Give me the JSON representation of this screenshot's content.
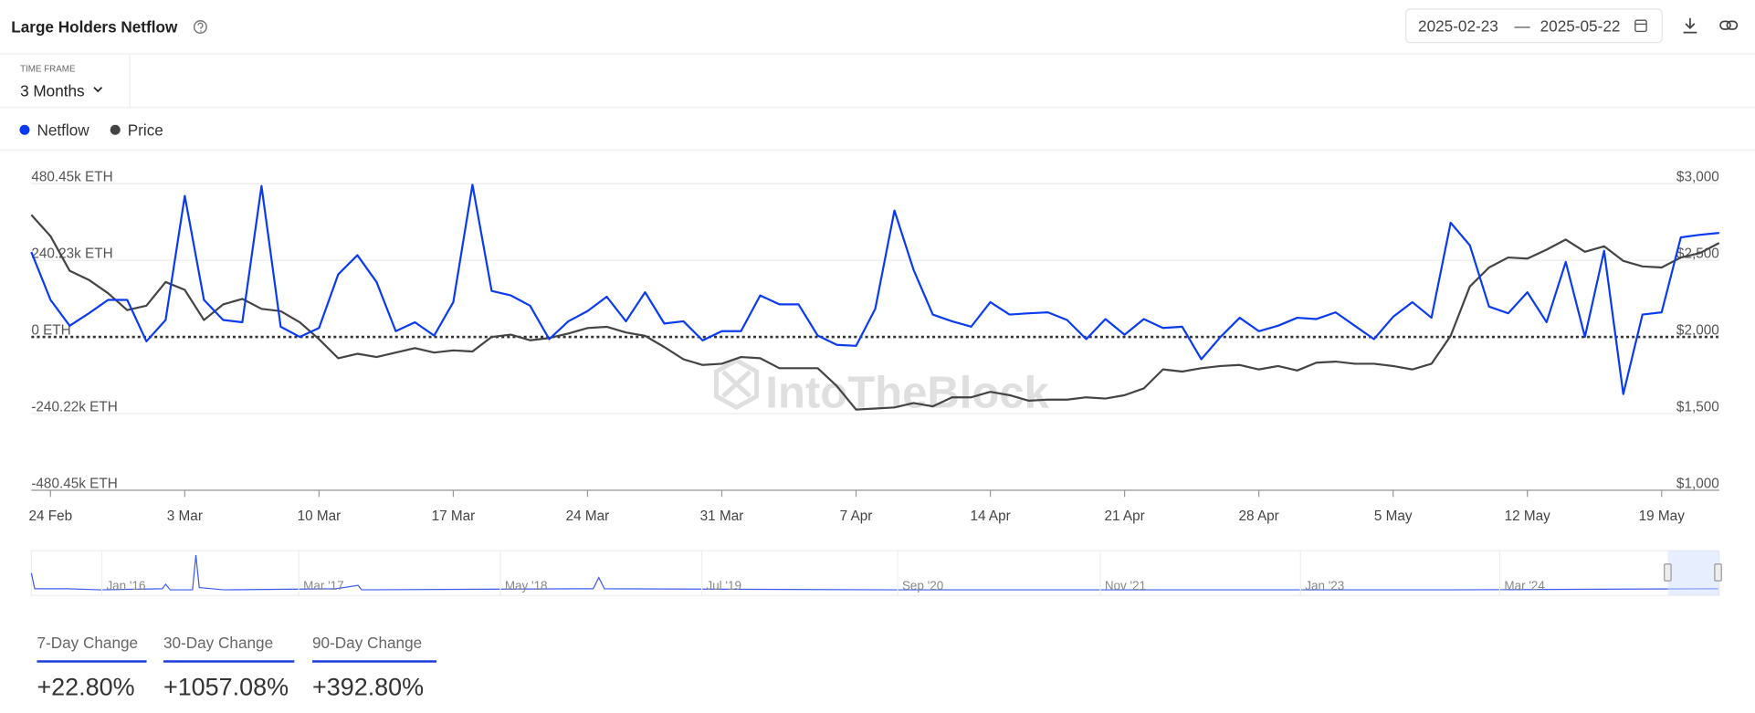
{
  "header": {
    "title": "Large Holders Netflow",
    "date_start": "2025-02-23",
    "date_sep": "—",
    "date_end": "2025-05-22"
  },
  "time_frame": {
    "label": "TIME FRAME",
    "value": "3 Months"
  },
  "chart_data": {
    "type": "line",
    "categories": [
      null,
      "24 Feb",
      null,
      null,
      null,
      null,
      null,
      null,
      "3 Mar",
      null,
      null,
      null,
      null,
      null,
      null,
      "10 Mar",
      null,
      null,
      null,
      null,
      null,
      null,
      "17 Mar",
      null,
      null,
      null,
      null,
      null,
      null,
      "24 Mar",
      null,
      null,
      null,
      null,
      null,
      null,
      "31 Mar",
      null,
      null,
      null,
      null,
      null,
      null,
      "7 Apr",
      null,
      null,
      null,
      null,
      null,
      null,
      "14 Apr",
      null,
      null,
      null,
      null,
      null,
      null,
      "21 Apr",
      null,
      null,
      null,
      null,
      null,
      null,
      "28 Apr",
      null,
      null,
      null,
      null,
      null,
      null,
      "5 May",
      null,
      null,
      null,
      null,
      null,
      null,
      "12 May",
      null,
      null,
      null,
      null,
      null,
      null,
      "19 May",
      null,
      null,
      null
    ],
    "series": [
      {
        "name": "Netflow",
        "color": "#0b3bf0",
        "axis": "y",
        "values": [
          266,
          116,
          35,
          74,
          116,
          116,
          -14,
          53,
          442,
          116,
          53,
          46,
          473,
          32,
          0,
          28,
          196,
          256,
          172,
          18,
          46,
          4,
          109,
          477,
          144,
          130,
          98,
          -7,
          49,
          81,
          126,
          49,
          140,
          42,
          49,
          -11,
          18,
          18,
          130,
          102,
          102,
          4,
          -25,
          -28,
          88,
          396,
          210,
          70,
          49,
          32,
          109,
          70,
          74,
          77,
          53,
          -7,
          56,
          7,
          56,
          28,
          32,
          -70,
          0,
          60,
          18,
          35,
          60,
          56,
          77,
          35,
          -7,
          63,
          109,
          60,
          358,
          287,
          95,
          74,
          140,
          46,
          235,
          0,
          270,
          -179,
          70,
          77,
          312,
          320,
          326
        ]
      },
      {
        "name": "Price",
        "color": "#444444",
        "axis": "y2",
        "values": [
          2796,
          2657,
          2431,
          2372,
          2285,
          2175,
          2204,
          2358,
          2307,
          2110,
          2212,
          2248,
          2183,
          2168,
          2095,
          1985,
          1861,
          1890,
          1869,
          1898,
          1927,
          1898,
          1912,
          1905,
          2000,
          2015,
          1978,
          1993,
          2022,
          2058,
          2066,
          2029,
          2007,
          1934,
          1854,
          1817,
          1825,
          1869,
          1861,
          1796,
          1796,
          1796,
          1679,
          1526,
          1533,
          1540,
          1569,
          1547,
          1606,
          1606,
          1642,
          1620,
          1584,
          1591,
          1591,
          1606,
          1598,
          1620,
          1664,
          1788,
          1774,
          1796,
          1810,
          1817,
          1788,
          1810,
          1781,
          1832,
          1839,
          1825,
          1825,
          1810,
          1788,
          1825,
          2007,
          2329,
          2453,
          2518,
          2511,
          2569,
          2635,
          2555,
          2591,
          2496,
          2460,
          2453,
          2518,
          2547,
          2613
        ]
      }
    ],
    "ylim": [
      -480.45,
      480.45
    ],
    "yticks": [
      {
        "value": 480.45,
        "label": "480.45k ETH"
      },
      {
        "value": 240.23,
        "label": "240.23k ETH"
      },
      {
        "value": 0,
        "label": "0 ETH"
      },
      {
        "value": -240.22,
        "label": "-240.22k ETH"
      },
      {
        "value": -480.45,
        "label": "-480.45k ETH"
      }
    ],
    "y2lim": [
      1000,
      3000
    ],
    "y2ticks": [
      {
        "value": 3000,
        "label": "$3,000"
      },
      {
        "value": 2500,
        "label": "$2,500"
      },
      {
        "value": 2000,
        "label": "$2,000"
      },
      {
        "value": 1500,
        "label": "$1,500"
      },
      {
        "value": 1000,
        "label": "$1,000"
      }
    ],
    "grid": true,
    "watermark": "IntoTheBlock"
  },
  "navigator": {
    "labels": [
      "Jan '16",
      "Mar '17",
      "May '18",
      "Jul '19",
      "Sep '20",
      "Nov '21",
      "Jan '23",
      "Mar '24"
    ]
  },
  "stats": [
    {
      "label": "7-Day Change",
      "value": "+22.80%"
    },
    {
      "label": "30-Day Change",
      "value": "+1057.08%"
    },
    {
      "label": "90-Day Change",
      "value": "+392.80%"
    }
  ]
}
